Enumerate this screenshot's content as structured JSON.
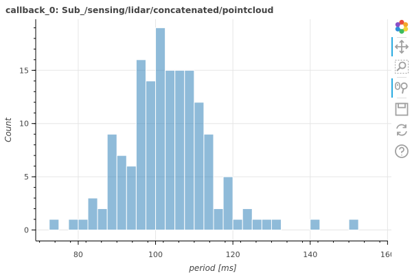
{
  "title": "callback_0: Sub_/sensing/lidar/concatenated/pointcloud",
  "toolbar": {
    "colors": {
      "active": "#26aae1",
      "icon": "#a0a0a0"
    },
    "tools": [
      {
        "name": "bokeh-logo-icon",
        "active": false
      },
      {
        "name": "pan-tool-icon",
        "active": true
      },
      {
        "name": "box-zoom-tool-icon",
        "active": false
      },
      {
        "name": "wheel-zoom-tool-icon",
        "active": true
      },
      {
        "name": "save-tool-icon",
        "active": false
      },
      {
        "name": "reset-tool-icon",
        "active": false
      },
      {
        "name": "help-tool-icon",
        "active": false
      }
    ]
  },
  "chart_data": {
    "type": "bar",
    "title": "callback_0: Sub_/sensing/lidar/concatenated/pointcloud",
    "xlabel": "period [ms]",
    "ylabel": "Count",
    "xlim": [
      69,
      161
    ],
    "ylim": [
      -1,
      19.8
    ],
    "xticks": [
      80,
      100,
      120,
      140,
      160
    ],
    "yticks": [
      0,
      5,
      10,
      15
    ],
    "grid": true,
    "bar_color": "#1f77b4",
    "bar_opacity": 0.5,
    "bin_width": 2.5,
    "bins": [
      {
        "x0": 72.5,
        "count": 1
      },
      {
        "x0": 77.5,
        "count": 1
      },
      {
        "x0": 80,
        "count": 1
      },
      {
        "x0": 82.5,
        "count": 3
      },
      {
        "x0": 85,
        "count": 2
      },
      {
        "x0": 87.5,
        "count": 9
      },
      {
        "x0": 90,
        "count": 7
      },
      {
        "x0": 92.5,
        "count": 6
      },
      {
        "x0": 95,
        "count": 16
      },
      {
        "x0": 97.5,
        "count": 14
      },
      {
        "x0": 100,
        "count": 19
      },
      {
        "x0": 102.5,
        "count": 15
      },
      {
        "x0": 105,
        "count": 15
      },
      {
        "x0": 107.5,
        "count": 15
      },
      {
        "x0": 110,
        "count": 12
      },
      {
        "x0": 112.5,
        "count": 9
      },
      {
        "x0": 115,
        "count": 2
      },
      {
        "x0": 117.5,
        "count": 5
      },
      {
        "x0": 120,
        "count": 1
      },
      {
        "x0": 122.5,
        "count": 2
      },
      {
        "x0": 125,
        "count": 1
      },
      {
        "x0": 127.5,
        "count": 1
      },
      {
        "x0": 130,
        "count": 1
      },
      {
        "x0": 140,
        "count": 1
      },
      {
        "x0": 150,
        "count": 1
      }
    ]
  }
}
